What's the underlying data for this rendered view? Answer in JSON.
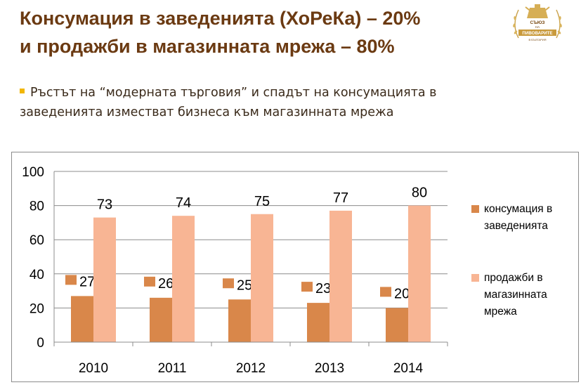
{
  "title": {
    "line1": "Консумация в заведенията (ХоРеКа) – 20%",
    "line2": "и продажби в магазинната мрежа – 80%"
  },
  "logo": {
    "line1": "СЪЮЗ",
    "line2": "НА",
    "line3": "ПИВОВАРИТЕ",
    "line4": "В БЪЛГАРИЯ"
  },
  "bullet": {
    "line1": "Ръстът на “модерната търговия” и спадът на  консумацията в",
    "line2": "заведенията изместват бизнеса към магазинната мрежа"
  },
  "colors": {
    "title": "#6b3a12",
    "bullet_marker": "#f2b705",
    "series_horeca": "#d9874a",
    "series_retail": "#f8b594"
  },
  "chart_data": {
    "type": "bar",
    "categories": [
      "2010",
      "2011",
      "2012",
      "2013",
      "2014"
    ],
    "series": [
      {
        "name": "консумация в заведенията",
        "legend_lines": [
          "консумация в",
          "заведенията"
        ],
        "values": [
          27,
          26,
          25,
          23,
          20
        ]
      },
      {
        "name": "продажби в магазинната мрежа",
        "legend_lines": [
          "продажби в",
          "магазинната",
          "мрежа"
        ],
        "values": [
          73,
          74,
          75,
          77,
          80
        ]
      }
    ],
    "ylim": [
      0,
      100
    ],
    "yticks": [
      "0",
      "20",
      "40",
      "60",
      "80",
      "100"
    ],
    "grid": true,
    "legend_position": "right"
  }
}
